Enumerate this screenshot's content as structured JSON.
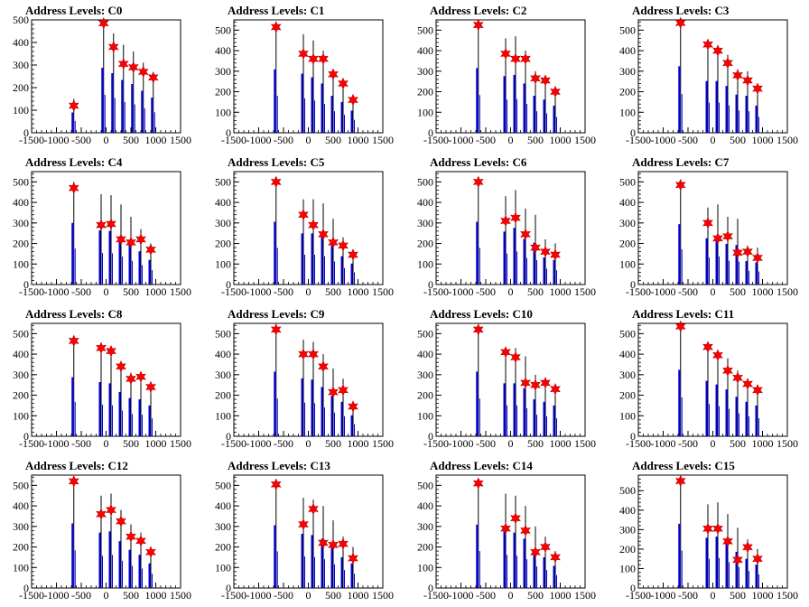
{
  "chart_data": [
    {
      "type": "bar",
      "title": "Address Levels: C0",
      "xlim": [
        -1500,
        1500
      ],
      "ylim": [
        0,
        500
      ],
      "x_ticks": [
        "-1500",
        "-1000",
        "-500",
        "0",
        "500",
        "1000",
        "1500"
      ],
      "y_ticks": [
        "0",
        "100",
        "200",
        "300",
        "400",
        "500"
      ],
      "peaks": [
        [
          -650,
          150
        ],
        [
          -50,
          480
        ],
        [
          150,
          440
        ],
        [
          350,
          390
        ],
        [
          550,
          360
        ],
        [
          750,
          310
        ],
        [
          950,
          260
        ]
      ],
      "stars": [
        [
          -650,
          120
        ],
        [
          -50,
          485
        ],
        [
          150,
          380
        ],
        [
          350,
          305
        ],
        [
          550,
          290
        ],
        [
          750,
          270
        ],
        [
          950,
          245
        ]
      ]
    },
    {
      "type": "bar",
      "title": "Address Levels: C1",
      "xlim": [
        -1500,
        1500
      ],
      "ylim": [
        0,
        550
      ],
      "x_ticks": [
        "-1500",
        "-1000",
        "-500",
        "0",
        "500",
        "1000",
        "1500"
      ],
      "y_ticks": [
        "0",
        "100",
        "200",
        "300",
        "400",
        "500"
      ],
      "peaks": [
        [
          -650,
          515
        ],
        [
          -100,
          480
        ],
        [
          100,
          450
        ],
        [
          300,
          400
        ],
        [
          500,
          300
        ],
        [
          700,
          250
        ],
        [
          900,
          180
        ]
      ],
      "stars": [
        [
          -650,
          515
        ],
        [
          -100,
          385
        ],
        [
          100,
          360
        ],
        [
          300,
          360
        ],
        [
          500,
          285
        ],
        [
          700,
          240
        ],
        [
          900,
          160
        ]
      ]
    },
    {
      "type": "bar",
      "title": "Address Levels: C2",
      "xlim": [
        -1500,
        1500
      ],
      "ylim": [
        0,
        550
      ],
      "x_ticks": [
        "-1500",
        "-1000",
        "-500",
        "0",
        "500",
        "1000",
        "1500"
      ],
      "y_ticks": [
        "0",
        "100",
        "200",
        "300",
        "400",
        "500"
      ],
      "peaks": [
        [
          -650,
          525
        ],
        [
          -100,
          460
        ],
        [
          100,
          470
        ],
        [
          300,
          400
        ],
        [
          500,
          300
        ],
        [
          700,
          270
        ],
        [
          900,
          220
        ]
      ],
      "stars": [
        [
          -650,
          525
        ],
        [
          -100,
          385
        ],
        [
          100,
          360
        ],
        [
          300,
          360
        ],
        [
          500,
          265
        ],
        [
          700,
          255
        ],
        [
          900,
          200
        ]
      ]
    },
    {
      "type": "bar",
      "title": "Address Levels: C3",
      "xlim": [
        -1500,
        1500
      ],
      "ylim": [
        0,
        550
      ],
      "x_ticks": [
        "-1500",
        "-1000",
        "-500",
        "0",
        "500",
        "1000",
        "1500"
      ],
      "y_ticks": [
        "0",
        "100",
        "200",
        "300",
        "400",
        "500"
      ],
      "peaks": [
        [
          -650,
          540
        ],
        [
          -100,
          420
        ],
        [
          100,
          420
        ],
        [
          300,
          380
        ],
        [
          500,
          310
        ],
        [
          700,
          300
        ],
        [
          900,
          220
        ]
      ],
      "stars": [
        [
          -650,
          535
        ],
        [
          -100,
          430
        ],
        [
          100,
          400
        ],
        [
          300,
          340
        ],
        [
          500,
          280
        ],
        [
          700,
          255
        ],
        [
          900,
          215
        ]
      ]
    },
    {
      "type": "bar",
      "title": "Address Levels: C4",
      "xlim": [
        -1500,
        1500
      ],
      "ylim": [
        0,
        550
      ],
      "x_ticks": [
        "-1500",
        "-1000",
        "-500",
        "0",
        "500",
        "1000",
        "1500"
      ],
      "y_ticks": [
        "0",
        "100",
        "200",
        "300",
        "400",
        "500"
      ],
      "peaks": [
        [
          -650,
          500
        ],
        [
          -100,
          440
        ],
        [
          100,
          435
        ],
        [
          300,
          390
        ],
        [
          500,
          330
        ],
        [
          700,
          270
        ],
        [
          900,
          200
        ]
      ],
      "stars": [
        [
          -650,
          470
        ],
        [
          -100,
          290
        ],
        [
          100,
          295
        ],
        [
          300,
          220
        ],
        [
          500,
          205
        ],
        [
          700,
          220
        ],
        [
          900,
          170
        ]
      ]
    },
    {
      "type": "bar",
      "title": "Address Levels: C5",
      "xlim": [
        -1500,
        1500
      ],
      "ylim": [
        0,
        550
      ],
      "x_ticks": [
        "-1500",
        "-1000",
        "-500",
        "0",
        "500",
        "1000",
        "1500"
      ],
      "y_ticks": [
        "0",
        "100",
        "200",
        "300",
        "400",
        "500"
      ],
      "peaks": [
        [
          -650,
          510
        ],
        [
          -100,
          415
        ],
        [
          100,
          415
        ],
        [
          300,
          395
        ],
        [
          500,
          320
        ],
        [
          700,
          230
        ],
        [
          900,
          170
        ]
      ],
      "stars": [
        [
          -650,
          500
        ],
        [
          -100,
          340
        ],
        [
          100,
          290
        ],
        [
          300,
          245
        ],
        [
          500,
          205
        ],
        [
          700,
          190
        ],
        [
          900,
          145
        ]
      ]
    },
    {
      "type": "bar",
      "title": "Address Levels: C6",
      "xlim": [
        -1500,
        1500
      ],
      "ylim": [
        0,
        550
      ],
      "x_ticks": [
        "-1500",
        "-1000",
        "-500",
        "0",
        "500",
        "1000",
        "1500"
      ],
      "y_ticks": [
        "0",
        "100",
        "200",
        "300",
        "400",
        "500"
      ],
      "peaks": [
        [
          -650,
          510
        ],
        [
          -100,
          430
        ],
        [
          100,
          460
        ],
        [
          300,
          370
        ],
        [
          500,
          340
        ],
        [
          700,
          220
        ],
        [
          900,
          200
        ]
      ],
      "stars": [
        [
          -650,
          500
        ],
        [
          -100,
          310
        ],
        [
          100,
          325
        ],
        [
          300,
          245
        ],
        [
          500,
          180
        ],
        [
          700,
          160
        ],
        [
          900,
          145
        ]
      ]
    },
    {
      "type": "bar",
      "title": "Address Levels: C7",
      "xlim": [
        -1500,
        1500
      ],
      "ylim": [
        0,
        550
      ],
      "x_ticks": [
        "-1500",
        "-1000",
        "-500",
        "0",
        "500",
        "1000",
        "1500"
      ],
      "y_ticks": [
        "0",
        "100",
        "200",
        "300",
        "400",
        "500"
      ],
      "peaks": [
        [
          -650,
          490
        ],
        [
          -100,
          375
        ],
        [
          100,
          390
        ],
        [
          300,
          330
        ],
        [
          500,
          320
        ],
        [
          700,
          190
        ],
        [
          900,
          180
        ]
      ],
      "stars": [
        [
          -650,
          485
        ],
        [
          -100,
          300
        ],
        [
          100,
          225
        ],
        [
          300,
          235
        ],
        [
          500,
          155
        ],
        [
          700,
          160
        ],
        [
          900,
          130
        ]
      ]
    },
    {
      "type": "bar",
      "title": "Address Levels: C8",
      "xlim": [
        -1500,
        1500
      ],
      "ylim": [
        0,
        550
      ],
      "x_ticks": [
        "-1500",
        "-1000",
        "-500",
        "0",
        "500",
        "1000",
        "1500"
      ],
      "y_ticks": [
        "0",
        "100",
        "200",
        "300",
        "400",
        "500"
      ],
      "peaks": [
        [
          -650,
          480
        ],
        [
          -100,
          440
        ],
        [
          100,
          430
        ],
        [
          300,
          360
        ],
        [
          500,
          310
        ],
        [
          700,
          300
        ],
        [
          900,
          250
        ]
      ],
      "stars": [
        [
          -650,
          465
        ],
        [
          -100,
          430
        ],
        [
          100,
          415
        ],
        [
          300,
          340
        ],
        [
          500,
          280
        ],
        [
          700,
          290
        ],
        [
          900,
          240
        ]
      ]
    },
    {
      "type": "bar",
      "title": "Address Levels: C9",
      "xlim": [
        -1500,
        1500
      ],
      "ylim": [
        0,
        550
      ],
      "x_ticks": [
        "-1500",
        "-1000",
        "-500",
        "0",
        "500",
        "1000",
        "1500"
      ],
      "y_ticks": [
        "0",
        "100",
        "200",
        "300",
        "400",
        "500"
      ],
      "peaks": [
        [
          -650,
          525
        ],
        [
          -100,
          470
        ],
        [
          100,
          460
        ],
        [
          300,
          400
        ],
        [
          500,
          330
        ],
        [
          700,
          280
        ],
        [
          900,
          170
        ]
      ],
      "stars": [
        [
          -650,
          520
        ],
        [
          -100,
          400
        ],
        [
          100,
          400
        ],
        [
          300,
          340
        ],
        [
          500,
          215
        ],
        [
          700,
          225
        ],
        [
          900,
          145
        ]
      ]
    },
    {
      "type": "bar",
      "title": "Address Levels: C10",
      "xlim": [
        -1500,
        1500
      ],
      "ylim": [
        0,
        550
      ],
      "x_ticks": [
        "-1500",
        "-1000",
        "-500",
        "0",
        "500",
        "1000",
        "1500"
      ],
      "y_ticks": [
        "0",
        "100",
        "200",
        "300",
        "400",
        "500"
      ],
      "peaks": [
        [
          -650,
          525
        ],
        [
          -100,
          430
        ],
        [
          100,
          430
        ],
        [
          300,
          390
        ],
        [
          500,
          300
        ],
        [
          700,
          280
        ],
        [
          900,
          250
        ]
      ],
      "stars": [
        [
          -650,
          520
        ],
        [
          -100,
          410
        ],
        [
          100,
          385
        ],
        [
          300,
          260
        ],
        [
          500,
          250
        ],
        [
          700,
          260
        ],
        [
          900,
          230
        ]
      ]
    },
    {
      "type": "bar",
      "title": "Address Levels: C11",
      "xlim": [
        -1500,
        1500
      ],
      "ylim": [
        0,
        550
      ],
      "x_ticks": [
        "-1500",
        "-1000",
        "-500",
        "0",
        "500",
        "1000",
        "1500"
      ],
      "y_ticks": [
        "0",
        "100",
        "200",
        "300",
        "400",
        "500"
      ],
      "peaks": [
        [
          -650,
          540
        ],
        [
          -100,
          450
        ],
        [
          100,
          420
        ],
        [
          300,
          380
        ],
        [
          500,
          320
        ],
        [
          700,
          280
        ],
        [
          900,
          250
        ]
      ],
      "stars": [
        [
          -650,
          535
        ],
        [
          -100,
          435
        ],
        [
          100,
          395
        ],
        [
          300,
          320
        ],
        [
          500,
          285
        ],
        [
          700,
          255
        ],
        [
          900,
          225
        ]
      ]
    },
    {
      "type": "bar",
      "title": "Address Levels: C12",
      "xlim": [
        -1500,
        1500
      ],
      "ylim": [
        0,
        550
      ],
      "x_ticks": [
        "-1500",
        "-1000",
        "-500",
        "0",
        "500",
        "1000",
        "1500"
      ],
      "y_ticks": [
        "0",
        "100",
        "200",
        "300",
        "400",
        "500"
      ],
      "peaks": [
        [
          -650,
          525
        ],
        [
          -100,
          450
        ],
        [
          100,
          460
        ],
        [
          300,
          380
        ],
        [
          500,
          310
        ],
        [
          700,
          270
        ],
        [
          900,
          200
        ]
      ],
      "stars": [
        [
          -650,
          520
        ],
        [
          -100,
          360
        ],
        [
          100,
          380
        ],
        [
          300,
          325
        ],
        [
          500,
          250
        ],
        [
          700,
          230
        ],
        [
          900,
          175
        ]
      ]
    },
    {
      "type": "bar",
      "title": "Address Levels: C13",
      "xlim": [
        -1500,
        1500
      ],
      "ylim": [
        0,
        550
      ],
      "x_ticks": [
        "-1500",
        "-1000",
        "-500",
        "0",
        "500",
        "1000",
        "1500"
      ],
      "y_ticks": [
        "0",
        "100",
        "200",
        "300",
        "400",
        "500"
      ],
      "peaks": [
        [
          -650,
          510
        ],
        [
          -100,
          440
        ],
        [
          100,
          430
        ],
        [
          300,
          400
        ],
        [
          500,
          330
        ],
        [
          700,
          250
        ],
        [
          900,
          200
        ]
      ],
      "stars": [
        [
          -650,
          505
        ],
        [
          -100,
          310
        ],
        [
          100,
          385
        ],
        [
          300,
          220
        ],
        [
          500,
          210
        ],
        [
          700,
          215
        ],
        [
          900,
          145
        ]
      ]
    },
    {
      "type": "bar",
      "title": "Address Levels: C14",
      "xlim": [
        -1500,
        1500
      ],
      "ylim": [
        0,
        550
      ],
      "x_ticks": [
        "-1500",
        "-1000",
        "-500",
        "0",
        "500",
        "1000",
        "1500"
      ],
      "y_ticks": [
        "0",
        "100",
        "200",
        "300",
        "400",
        "500"
      ],
      "peaks": [
        [
          -650,
          515
        ],
        [
          -100,
          460
        ],
        [
          100,
          450
        ],
        [
          300,
          400
        ],
        [
          500,
          300
        ],
        [
          700,
          250
        ],
        [
          900,
          180
        ]
      ],
      "stars": [
        [
          -650,
          510
        ],
        [
          -100,
          290
        ],
        [
          100,
          340
        ],
        [
          300,
          280
        ],
        [
          500,
          175
        ],
        [
          700,
          200
        ],
        [
          900,
          150
        ]
      ]
    },
    {
      "type": "bar",
      "title": "Address Levels: C15",
      "xlim": [
        -1500,
        1500
      ],
      "ylim": [
        0,
        580
      ],
      "x_ticks": [
        "-1500",
        "-1000",
        "-500",
        "0",
        "500",
        "1000",
        "1500"
      ],
      "y_ticks": [
        "0",
        "100",
        "200",
        "300",
        "400",
        "500"
      ],
      "peaks": [
        [
          -650,
          550
        ],
        [
          -100,
          430
        ],
        [
          100,
          440
        ],
        [
          300,
          380
        ],
        [
          500,
          310
        ],
        [
          700,
          250
        ],
        [
          900,
          200
        ]
      ],
      "stars": [
        [
          -650,
          550
        ],
        [
          -100,
          305
        ],
        [
          100,
          305
        ],
        [
          300,
          240
        ],
        [
          500,
          145
        ],
        [
          700,
          210
        ],
        [
          900,
          150
        ]
      ]
    }
  ],
  "colors": {
    "bar": "#0000ee",
    "star": "#ff0000",
    "axis": "#000000"
  }
}
